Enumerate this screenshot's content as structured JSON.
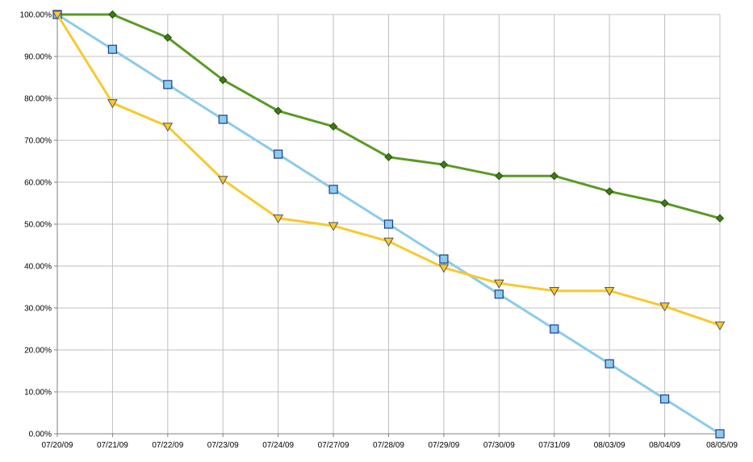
{
  "chart_data": {
    "type": "line",
    "title": "",
    "xlabel": "",
    "ylabel": "",
    "categories": [
      "07/20/09",
      "07/21/09",
      "07/22/09",
      "07/23/09",
      "07/24/09",
      "07/27/09",
      "07/28/09",
      "07/29/09",
      "07/30/09",
      "07/31/09",
      "08/03/09",
      "08/04/09",
      "08/05/09"
    ],
    "y_tick_labels": [
      "0.00%",
      "10.00%",
      "20.00%",
      "30.00%",
      "40.00%",
      "50.00%",
      "60.00%",
      "70.00%",
      "80.00%",
      "90.00%",
      "100.00%"
    ],
    "ylim": [
      0,
      100
    ],
    "grid": true,
    "legend": "none",
    "series": [
      {
        "color": "#5a9a24",
        "marker": "diamond",
        "values": [
          100,
          100,
          94.5,
          84.4,
          77,
          73.3,
          66,
          64.2,
          61.5,
          61.5,
          57.8,
          55,
          51.4
        ]
      },
      {
        "color": "#8ccbec",
        "marker": "square",
        "values": [
          100,
          91.7,
          83.3,
          75,
          66.7,
          58.3,
          50,
          41.7,
          33.3,
          25,
          16.7,
          8.3,
          0
        ]
      },
      {
        "color": "#f7c92f",
        "marker": "triangle-down",
        "values": [
          100,
          78.9,
          73.3,
          60.6,
          51.4,
          49.6,
          45.9,
          39.6,
          35.9,
          34.1,
          34.1,
          30.4,
          25.9
        ]
      }
    ]
  }
}
